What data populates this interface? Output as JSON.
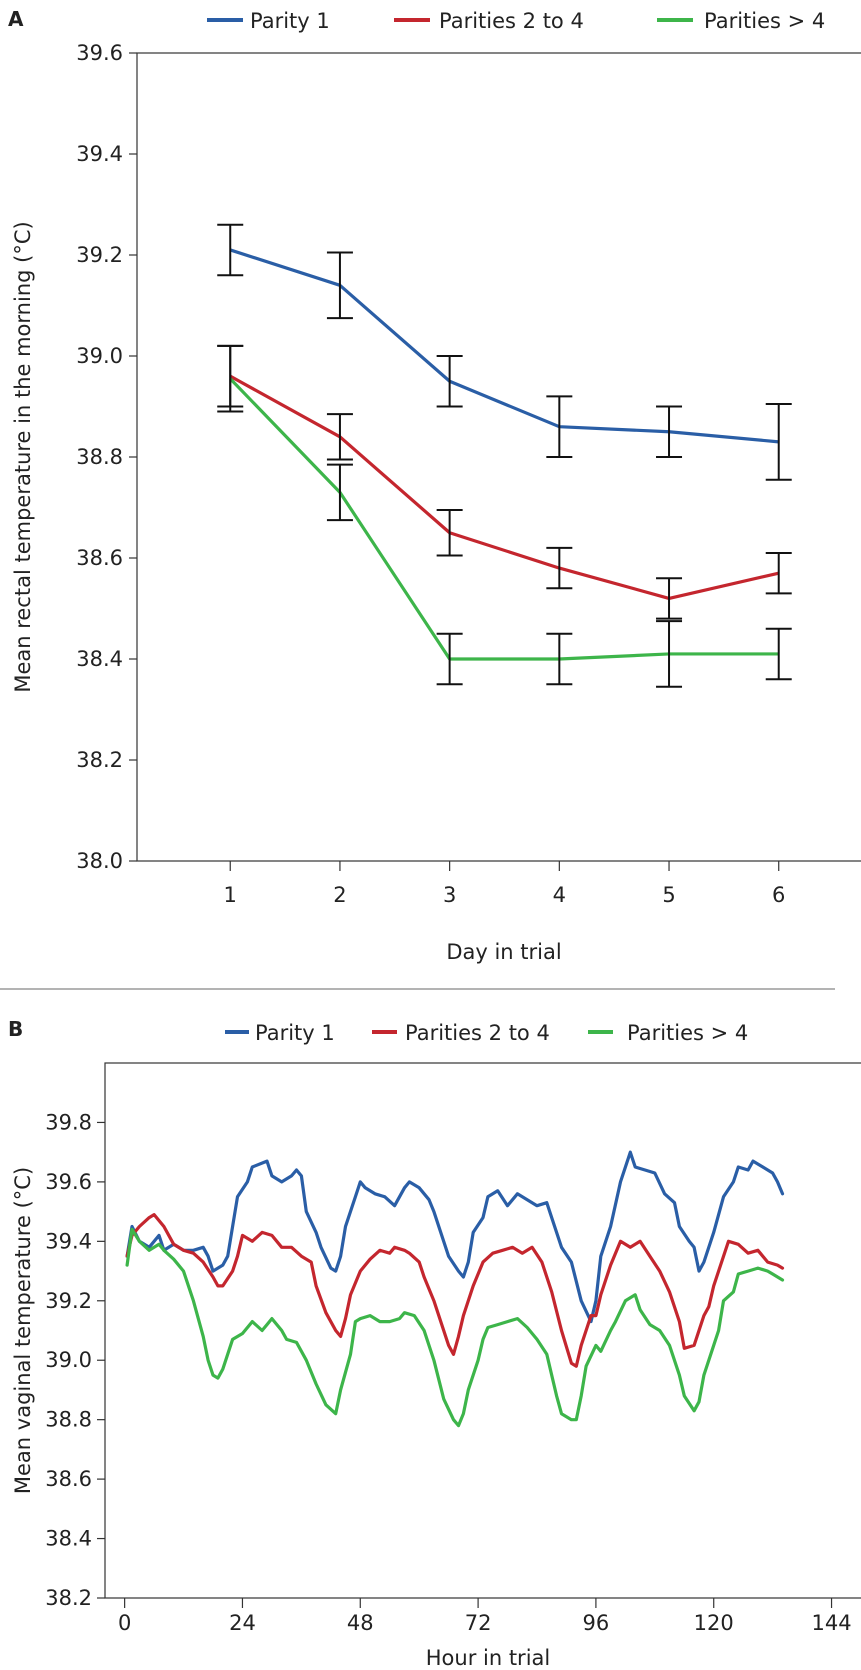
{
  "chart_data": [
    {
      "panel": "A",
      "type": "line",
      "xlabel": "Day in trial",
      "ylabel": "Mean rectal temperature in the morning (°C)",
      "x": [
        1,
        2,
        3,
        4,
        5,
        6
      ],
      "xticks": [
        "1",
        "2",
        "3",
        "4",
        "5",
        "6"
      ],
      "xlim": [
        0.15,
        6.75
      ],
      "ylim": [
        38.0,
        39.6
      ],
      "yticks": [
        "38.0",
        "38.2",
        "38.4",
        "38.6",
        "38.8",
        "39.0",
        "39.2",
        "39.4",
        "39.6"
      ],
      "legend_position": "top",
      "series": [
        {
          "name": "Parity 1",
          "color": "#2a5ea6",
          "values": [
            39.21,
            39.14,
            38.95,
            38.86,
            38.85,
            38.83
          ],
          "error": [
            0.05,
            0.065,
            0.05,
            0.06,
            0.05,
            0.075
          ]
        },
        {
          "name": "Parities 2 to 4",
          "color": "#c4262e",
          "values": [
            38.96,
            38.84,
            38.65,
            38.58,
            38.52,
            38.57
          ],
          "error": [
            0.06,
            0.045,
            0.045,
            0.04,
            0.04,
            0.04
          ]
        },
        {
          "name": "Parities > 4",
          "color": "#3db54a",
          "values": [
            38.955,
            38.73,
            38.4,
            38.4,
            38.41,
            38.41
          ],
          "error": [
            0.065,
            0.055,
            0.05,
            0.05,
            0.065,
            0.05
          ]
        }
      ]
    },
    {
      "panel": "B",
      "type": "line",
      "xlabel": "Hour in trial",
      "ylabel": "Mean vaginal temperature (°C)",
      "xlim": [
        -4,
        150
      ],
      "ylim": [
        38.2,
        40.0
      ],
      "xticks": [
        "0",
        "24",
        "48",
        "72",
        "96",
        "120",
        "144"
      ],
      "xtick_values": [
        0,
        24,
        48,
        72,
        96,
        120,
        144
      ],
      "yticks": [
        "38.2",
        "38.4",
        "38.6",
        "38.8",
        "39.0",
        "39.2",
        "39.4",
        "39.6",
        "39.8"
      ],
      "ytick_values": [
        38.2,
        38.4,
        38.6,
        38.8,
        39.0,
        39.2,
        39.4,
        39.6,
        39.8
      ],
      "legend_position": "top",
      "series": [
        {
          "name": "Parity 1",
          "color": "#2a5ea6",
          "points": [
            [
              0.5,
              39.35
            ],
            [
              1.5,
              39.45
            ],
            [
              3,
              39.4
            ],
            [
              5,
              39.38
            ],
            [
              7,
              39.42
            ],
            [
              8,
              39.37
            ],
            [
              10,
              39.39
            ],
            [
              12,
              39.37
            ],
            [
              14,
              39.37
            ],
            [
              16,
              39.38
            ],
            [
              17,
              39.35
            ],
            [
              18,
              39.3
            ],
            [
              20,
              39.32
            ],
            [
              21,
              39.35
            ],
            [
              22,
              39.45
            ],
            [
              23,
              39.55
            ],
            [
              25,
              39.6
            ],
            [
              26,
              39.65
            ],
            [
              29,
              39.67
            ],
            [
              30,
              39.62
            ],
            [
              32,
              39.6
            ],
            [
              34,
              39.62
            ],
            [
              35,
              39.64
            ],
            [
              36,
              39.62
            ],
            [
              37,
              39.5
            ],
            [
              39,
              39.43
            ],
            [
              40,
              39.38
            ],
            [
              42,
              39.31
            ],
            [
              43,
              39.3
            ],
            [
              44,
              39.35
            ],
            [
              45,
              39.45
            ],
            [
              47,
              39.55
            ],
            [
              48,
              39.6
            ],
            [
              49,
              39.58
            ],
            [
              51,
              39.56
            ],
            [
              53,
              39.55
            ],
            [
              55,
              39.52
            ],
            [
              57,
              39.58
            ],
            [
              58,
              39.6
            ],
            [
              60,
              39.58
            ],
            [
              62,
              39.54
            ],
            [
              63,
              39.5
            ],
            [
              64,
              39.45
            ],
            [
              66,
              39.35
            ],
            [
              68,
              39.3
            ],
            [
              69,
              39.28
            ],
            [
              70,
              39.33
            ],
            [
              71,
              39.43
            ],
            [
              73,
              39.48
            ],
            [
              74,
              39.55
            ],
            [
              76,
              39.57
            ],
            [
              78,
              39.52
            ],
            [
              80,
              39.56
            ],
            [
              82,
              39.54
            ],
            [
              84,
              39.52
            ],
            [
              86,
              39.53
            ],
            [
              87,
              39.48
            ],
            [
              89,
              39.38
            ],
            [
              91,
              39.33
            ],
            [
              93,
              39.2
            ],
            [
              95,
              39.13
            ],
            [
              96,
              39.2
            ],
            [
              97,
              39.35
            ],
            [
              99,
              39.45
            ],
            [
              101,
              39.6
            ],
            [
              103,
              39.7
            ],
            [
              104,
              39.65
            ],
            [
              106,
              39.64
            ],
            [
              108,
              39.63
            ],
            [
              110,
              39.56
            ],
            [
              112,
              39.53
            ],
            [
              113,
              39.45
            ],
            [
              115,
              39.4
            ],
            [
              116,
              39.38
            ],
            [
              117,
              39.3
            ],
            [
              118,
              39.33
            ],
            [
              120,
              39.43
            ],
            [
              122,
              39.55
            ],
            [
              124,
              39.6
            ],
            [
              125,
              39.65
            ],
            [
              127,
              39.64
            ],
            [
              128,
              39.67
            ],
            [
              130,
              39.65
            ],
            [
              132,
              39.63
            ],
            [
              133,
              39.6
            ],
            [
              134,
              39.56
            ]
          ]
        },
        {
          "name": "Parities 2 to 4",
          "color": "#c4262e",
          "points": [
            [
              0.5,
              39.35
            ],
            [
              1.5,
              39.42
            ],
            [
              3,
              39.45
            ],
            [
              5,
              39.48
            ],
            [
              6,
              39.49
            ],
            [
              8,
              39.45
            ],
            [
              10,
              39.39
            ],
            [
              12,
              39.37
            ],
            [
              14,
              39.36
            ],
            [
              16,
              39.33
            ],
            [
              18,
              39.28
            ],
            [
              19,
              39.25
            ],
            [
              20,
              39.25
            ],
            [
              22,
              39.3
            ],
            [
              23,
              39.35
            ],
            [
              24,
              39.42
            ],
            [
              26,
              39.4
            ],
            [
              28,
              39.43
            ],
            [
              30,
              39.42
            ],
            [
              32,
              39.38
            ],
            [
              34,
              39.38
            ],
            [
              36,
              39.35
            ],
            [
              38,
              39.33
            ],
            [
              39,
              39.25
            ],
            [
              41,
              39.16
            ],
            [
              43,
              39.1
            ],
            [
              44,
              39.08
            ],
            [
              45,
              39.14
            ],
            [
              46,
              39.22
            ],
            [
              48,
              39.3
            ],
            [
              50,
              39.34
            ],
            [
              52,
              39.37
            ],
            [
              54,
              39.36
            ],
            [
              55,
              39.38
            ],
            [
              57,
              39.37
            ],
            [
              58,
              39.36
            ],
            [
              60,
              39.33
            ],
            [
              61,
              39.28
            ],
            [
              63,
              39.2
            ],
            [
              65,
              39.1
            ],
            [
              66,
              39.05
            ],
            [
              67,
              39.02
            ],
            [
              68,
              39.08
            ],
            [
              69,
              39.15
            ],
            [
              71,
              39.25
            ],
            [
              73,
              39.33
            ],
            [
              75,
              39.36
            ],
            [
              77,
              39.37
            ],
            [
              79,
              39.38
            ],
            [
              81,
              39.36
            ],
            [
              83,
              39.38
            ],
            [
              85,
              39.33
            ],
            [
              87,
              39.23
            ],
            [
              89,
              39.1
            ],
            [
              91,
              38.99
            ],
            [
              92,
              38.98
            ],
            [
              93,
              39.05
            ],
            [
              95,
              39.15
            ],
            [
              96,
              39.15
            ],
            [
              97,
              39.22
            ],
            [
              99,
              39.32
            ],
            [
              101,
              39.4
            ],
            [
              103,
              39.38
            ],
            [
              105,
              39.4
            ],
            [
              107,
              39.35
            ],
            [
              109,
              39.3
            ],
            [
              111,
              39.23
            ],
            [
              113,
              39.13
            ],
            [
              114,
              39.04
            ],
            [
              116,
              39.05
            ],
            [
              118,
              39.15
            ],
            [
              119,
              39.18
            ],
            [
              120,
              39.25
            ],
            [
              121,
              39.3
            ],
            [
              123,
              39.4
            ],
            [
              125,
              39.39
            ],
            [
              127,
              39.36
            ],
            [
              129,
              39.37
            ],
            [
              131,
              39.33
            ],
            [
              133,
              39.32
            ],
            [
              134,
              39.31
            ]
          ]
        },
        {
          "name": "Parities > 4",
          "color": "#3db54a",
          "points": [
            [
              0.5,
              39.32
            ],
            [
              1.5,
              39.44
            ],
            [
              3,
              39.4
            ],
            [
              5,
              39.37
            ],
            [
              7,
              39.39
            ],
            [
              8,
              39.37
            ],
            [
              10,
              39.34
            ],
            [
              12,
              39.3
            ],
            [
              14,
              39.2
            ],
            [
              16,
              39.08
            ],
            [
              17,
              39.0
            ],
            [
              18,
              38.95
            ],
            [
              19,
              38.94
            ],
            [
              20,
              38.97
            ],
            [
              21,
              39.02
            ],
            [
              22,
              39.07
            ],
            [
              24,
              39.09
            ],
            [
              26,
              39.13
            ],
            [
              28,
              39.1
            ],
            [
              29,
              39.12
            ],
            [
              30,
              39.14
            ],
            [
              32,
              39.1
            ],
            [
              33,
              39.07
            ],
            [
              35,
              39.06
            ],
            [
              37,
              39.0
            ],
            [
              39,
              38.92
            ],
            [
              41,
              38.85
            ],
            [
              43,
              38.82
            ],
            [
              44,
              38.9
            ],
            [
              46,
              39.02
            ],
            [
              47,
              39.13
            ],
            [
              48,
              39.14
            ],
            [
              50,
              39.15
            ],
            [
              52,
              39.13
            ],
            [
              54,
              39.13
            ],
            [
              56,
              39.14
            ],
            [
              57,
              39.16
            ],
            [
              59,
              39.15
            ],
            [
              61,
              39.1
            ],
            [
              63,
              39.0
            ],
            [
              65,
              38.87
            ],
            [
              67,
              38.8
            ],
            [
              68,
              38.78
            ],
            [
              69,
              38.82
            ],
            [
              70,
              38.9
            ],
            [
              72,
              39.0
            ],
            [
              73,
              39.07
            ],
            [
              74,
              39.11
            ],
            [
              76,
              39.12
            ],
            [
              78,
              39.13
            ],
            [
              80,
              39.14
            ],
            [
              82,
              39.11
            ],
            [
              84,
              39.07
            ],
            [
              86,
              39.02
            ],
            [
              87,
              38.95
            ],
            [
              88,
              38.88
            ],
            [
              89,
              38.82
            ],
            [
              91,
              38.8
            ],
            [
              92,
              38.8
            ],
            [
              93,
              38.88
            ],
            [
              94,
              38.98
            ],
            [
              96,
              39.05
            ],
            [
              97,
              39.03
            ],
            [
              99,
              39.1
            ],
            [
              100,
              39.13
            ],
            [
              102,
              39.2
            ],
            [
              104,
              39.22
            ],
            [
              105,
              39.17
            ],
            [
              107,
              39.12
            ],
            [
              109,
              39.1
            ],
            [
              111,
              39.05
            ],
            [
              113,
              38.95
            ],
            [
              114,
              38.88
            ],
            [
              116,
              38.83
            ],
            [
              117,
              38.86
            ],
            [
              118,
              38.95
            ],
            [
              120,
              39.05
            ],
            [
              121,
              39.1
            ],
            [
              122,
              39.2
            ],
            [
              124,
              39.23
            ],
            [
              125,
              39.29
            ],
            [
              127,
              39.3
            ],
            [
              129,
              39.31
            ],
            [
              131,
              39.3
            ],
            [
              132,
              39.29
            ],
            [
              134,
              39.27
            ]
          ]
        }
      ]
    }
  ]
}
